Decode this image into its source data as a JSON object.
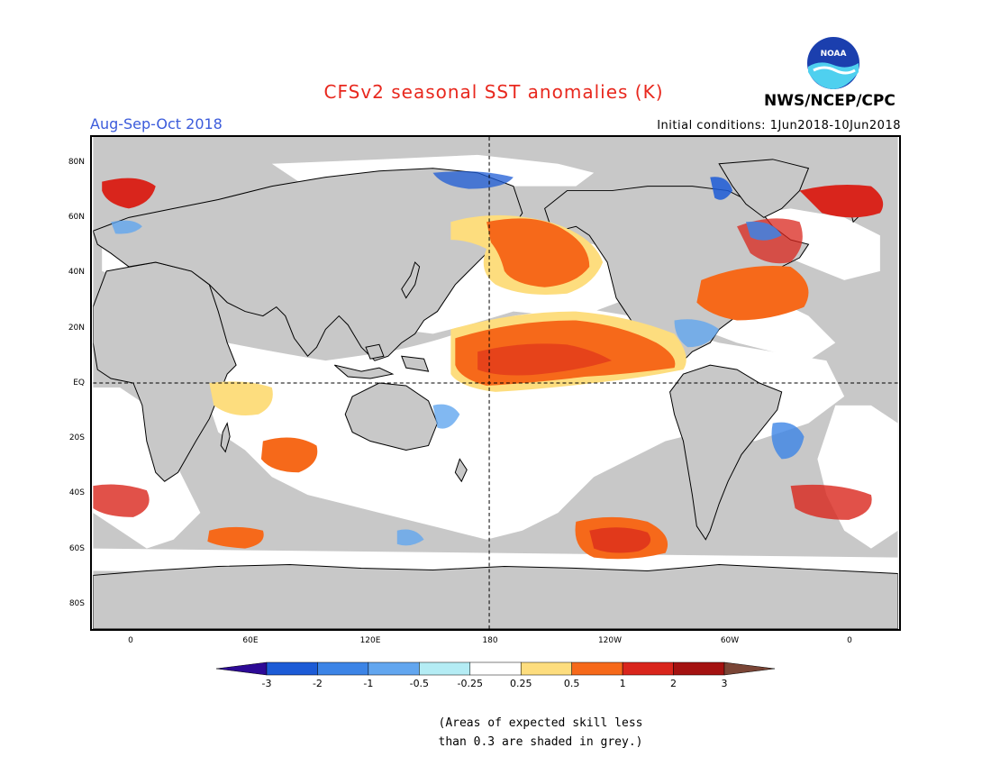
{
  "header": {
    "title": "CFSv2 seasonal SST anomalies (K)",
    "season": "Aug-Sep-Oct 2018",
    "initial_conditions": "Initial conditions: 1Jun2018-10Jun2018",
    "organization": "NWS/NCEP/CPC",
    "logo_text": "NOAA",
    "logo_icon": "noaa-logo"
  },
  "map": {
    "latitude_labels": [
      "80N",
      "60N",
      "40N",
      "20N",
      "EQ",
      "20S",
      "40S",
      "60S",
      "80S"
    ],
    "longitude_labels": [
      "0",
      "60E",
      "120E",
      "180",
      "120W",
      "60W",
      "0"
    ],
    "land_color": "#c8c8c8",
    "ocean_color": "#ffffff"
  },
  "legend": {
    "ticks": [
      "-3",
      "-2",
      "-1",
      "-0.5",
      "-0.25",
      "0.25",
      "0.5",
      "1",
      "2",
      "3"
    ],
    "colors": [
      "#2d0a96",
      "#1c5bd6",
      "#3c84e6",
      "#62a6ef",
      "#b4ecf4",
      "#ffffff",
      "#fddd7e",
      "#f6691a",
      "#d9251c",
      "#a41211",
      "#7a4536"
    ]
  },
  "footnote": {
    "line1": "(Areas of expected skill less",
    "line2": "than 0.3 are shaded in grey.)"
  }
}
